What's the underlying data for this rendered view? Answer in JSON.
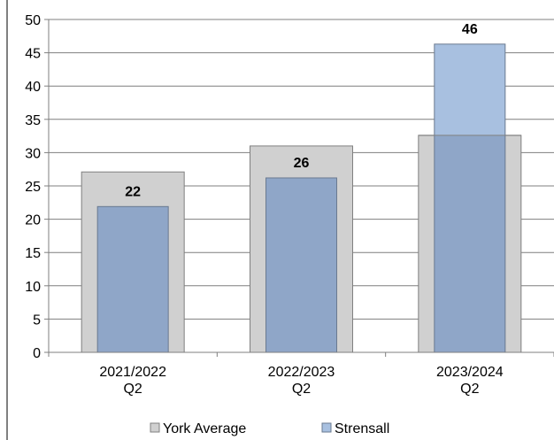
{
  "chart_data": {
    "type": "bar",
    "categories": [
      [
        "2021/2022",
        "Q2"
      ],
      [
        "2022/2023",
        "Q2"
      ],
      [
        "2023/2024",
        "Q2"
      ]
    ],
    "series": [
      {
        "name": "York Average",
        "values": [
          27.1,
          31.0,
          32.6
        ],
        "color": "#d0d0d0",
        "stroke": "#808080"
      },
      {
        "name": "Strensall",
        "values": [
          21.9,
          26.2,
          46.3
        ],
        "color_below": "#8fa6c8",
        "color_above": "#a8c0e0",
        "stroke": "#6a7a90"
      }
    ],
    "data_labels": [
      "22",
      "26",
      "46"
    ],
    "ylim": [
      0,
      50
    ],
    "yticks": [
      0,
      5,
      10,
      15,
      20,
      25,
      30,
      35,
      40,
      45,
      50
    ],
    "grid": true,
    "legend_position": "bottom",
    "title": "",
    "xlabel": "",
    "ylabel": ""
  }
}
